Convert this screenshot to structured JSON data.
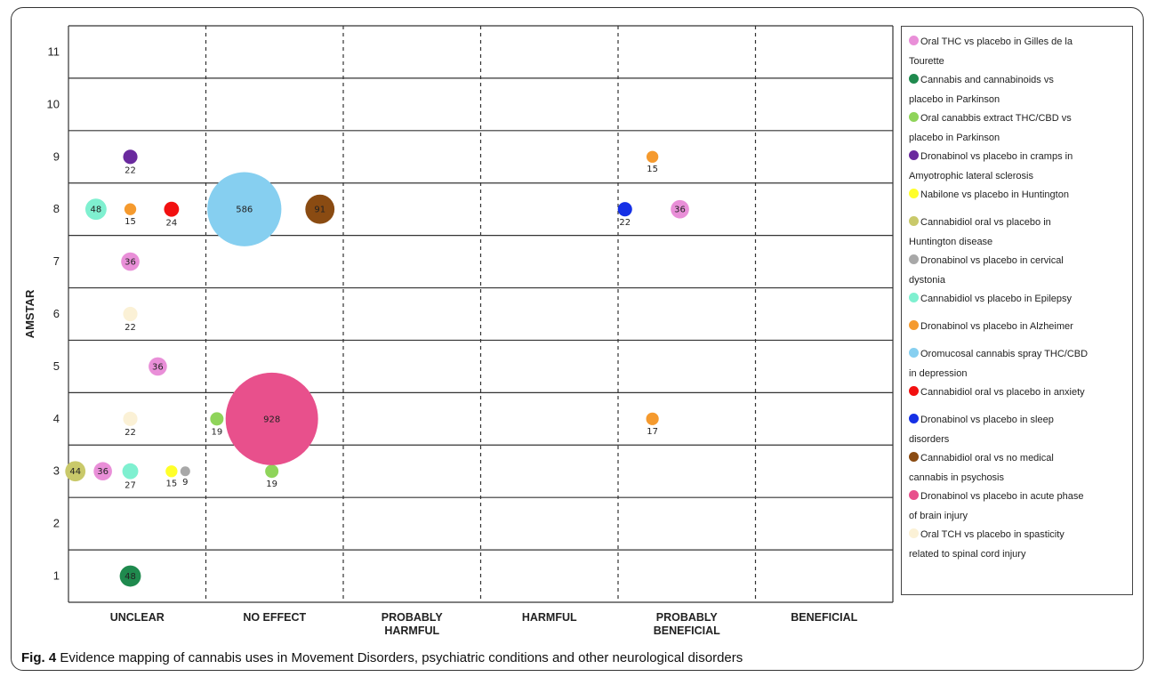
{
  "caption": {
    "label": "Fig. 4",
    "text": " Evidence mapping of cannabis uses in Movement Disorders, psychiatric conditions and other neurological disorders"
  },
  "chart_data": {
    "type": "scatter",
    "ylabel": "AMSTAR",
    "xlabel": "",
    "y_ticks": [
      "1",
      "2",
      "3",
      "4",
      "5",
      "6",
      "7",
      "8",
      "9",
      "10",
      "11"
    ],
    "ylim": [
      0.5,
      11.5
    ],
    "categories": [
      "UNCLEAR",
      "NO EFFECT",
      "PROBABLY HARMFUL",
      "HARMFUL",
      "PROBABLY BENEFICIAL",
      "BENEFICIAL"
    ],
    "category_labels": [
      [
        "UNCLEAR"
      ],
      [
        "NO EFFECT"
      ],
      [
        "PROBABLY",
        "HARMFUL"
      ],
      [
        "HARMFUL"
      ],
      [
        "PROBABLY",
        "BENEFICIAL"
      ],
      [
        "BENEFICIAL"
      ]
    ],
    "grid": true,
    "legend_position": "right",
    "series": [
      {
        "name": "Oral THC vs placebo in Gilles de la Tourette",
        "legend_lines": [
          "Oral THC vs placebo in Gilles de la",
          "Tourette"
        ],
        "color": "#e98fd8",
        "points": [
          {
            "x": 0.45,
            "y": 7,
            "size": 36
          },
          {
            "x": 0.65,
            "y": 5,
            "size": 36
          },
          {
            "x": 0.25,
            "y": 3,
            "size": 36
          },
          {
            "x": 4.45,
            "y": 8,
            "size": 36
          }
        ]
      },
      {
        "name": "Cannabis and cannabinoids vs placebo in Parkinson",
        "legend_lines": [
          "Cannabis and cannabinoids vs",
          "placebo in Parkinson"
        ],
        "color": "#1f8a4e",
        "points": [
          {
            "x": 0.45,
            "y": 1,
            "size": 48
          }
        ]
      },
      {
        "name": "Oral canabbis extract THC/CBD vs placebo in Parkinson",
        "legend_lines": [
          "Oral canabbis extract THC/CBD  vs",
          "placebo in Parkinson"
        ],
        "color": "#8fd45a",
        "points": [
          {
            "x": 1.08,
            "y": 4,
            "size": 19
          },
          {
            "x": 1.48,
            "y": 3,
            "size": 19
          }
        ]
      },
      {
        "name": "Dronabinol vs placebo in cramps in Amyotrophic lateral sclerosis",
        "legend_lines": [
          "Dronabinol vs placebo in cramps in",
          "Amyotrophic lateral sclerosis"
        ],
        "color": "#6a2a9e",
        "points": [
          {
            "x": 0.45,
            "y": 9,
            "size": 22
          }
        ]
      },
      {
        "name": "Nabilone vs placebo in Huntington",
        "legend_lines": [
          "Nabilone vs placebo in Huntington"
        ],
        "color": "#ffff2a",
        "points": [
          {
            "x": 0.75,
            "y": 3,
            "size": 15
          }
        ]
      },
      {
        "name": "Cannabidiol oral vs placebo in Huntington disease",
        "legend_lines": [
          "Cannabidiol oral vs placebo in",
          "Huntington disease"
        ],
        "color": "#c9c96a",
        "points": [
          {
            "x": 0.05,
            "y": 3,
            "size": 44
          }
        ]
      },
      {
        "name": "Dronabinol vs placebo in cervical dystonia",
        "legend_lines": [
          "Dronabinol vs placebo in cervical",
          "dystonia"
        ],
        "color": "#a8a8a8",
        "points": [
          {
            "x": 0.85,
            "y": 3,
            "size": 9
          }
        ]
      },
      {
        "name": "Cannabidiol vs placebo in Epilepsy",
        "legend_lines": [
          "Cannabidiol vs placebo in Epilepsy"
        ],
        "color": "#7ff0d0",
        "points": [
          {
            "x": 0.2,
            "y": 8,
            "size": 48
          },
          {
            "x": 0.45,
            "y": 3,
            "size": 27
          }
        ]
      },
      {
        "name": "Dronabinol vs placebo in Alzheimer",
        "legend_lines": [
          "Dronabinol vs placebo in Alzheimer"
        ],
        "color": "#f59a2e",
        "points": [
          {
            "x": 0.45,
            "y": 8,
            "size": 15
          },
          {
            "x": 4.25,
            "y": 9,
            "size": 15
          },
          {
            "x": 4.25,
            "y": 4,
            "size": 17
          }
        ]
      },
      {
        "name": "Oromucosal cannabis spray THC/CBD in depression",
        "legend_lines": [
          "Oromucosal cannabis spray THC/CBD",
          "in depression"
        ],
        "color": "#86cff0",
        "points": [
          {
            "x": 1.28,
            "y": 8,
            "size": 586
          }
        ]
      },
      {
        "name": "Cannabidiol oral vs placebo in anxiety",
        "legend_lines": [
          "Cannabidiol oral vs placebo in anxiety"
        ],
        "color": "#f21010",
        "points": [
          {
            "x": 0.75,
            "y": 8,
            "size": 24
          }
        ]
      },
      {
        "name": "Dronabinol vs placebo in sleep disorders",
        "legend_lines": [
          "Dronabinol vs placebo in sleep",
          "disorders"
        ],
        "color": "#1530e6",
        "points": [
          {
            "x": 4.05,
            "y": 8,
            "size": 22
          }
        ]
      },
      {
        "name": "Cannabidiol oral vs no medical cannabis in psychosis",
        "legend_lines": [
          "Cannabidiol oral vs no medical",
          "cannabis in psychosis"
        ],
        "color": "#8a4b12",
        "points": [
          {
            "x": 1.83,
            "y": 8,
            "size": 91
          }
        ]
      },
      {
        "name": "Dronabinol vs placebo in acute phase of brain injury",
        "legend_lines": [
          "Dronabinol vs placebo in acute phase",
          "of brain injury"
        ],
        "color": "#e8508c",
        "points": [
          {
            "x": 1.48,
            "y": 4,
            "size": 928
          }
        ]
      },
      {
        "name": "Oral TCH vs placebo in spasticity related to spinal cord injury",
        "legend_lines": [
          "Oral TCH vs placebo in spasticity",
          "related to spinal cord injury"
        ],
        "color": "#fbf1d6",
        "points": [
          {
            "x": 0.45,
            "y": 6,
            "size": 22
          },
          {
            "x": 0.45,
            "y": 4,
            "size": 22
          }
        ]
      }
    ]
  }
}
